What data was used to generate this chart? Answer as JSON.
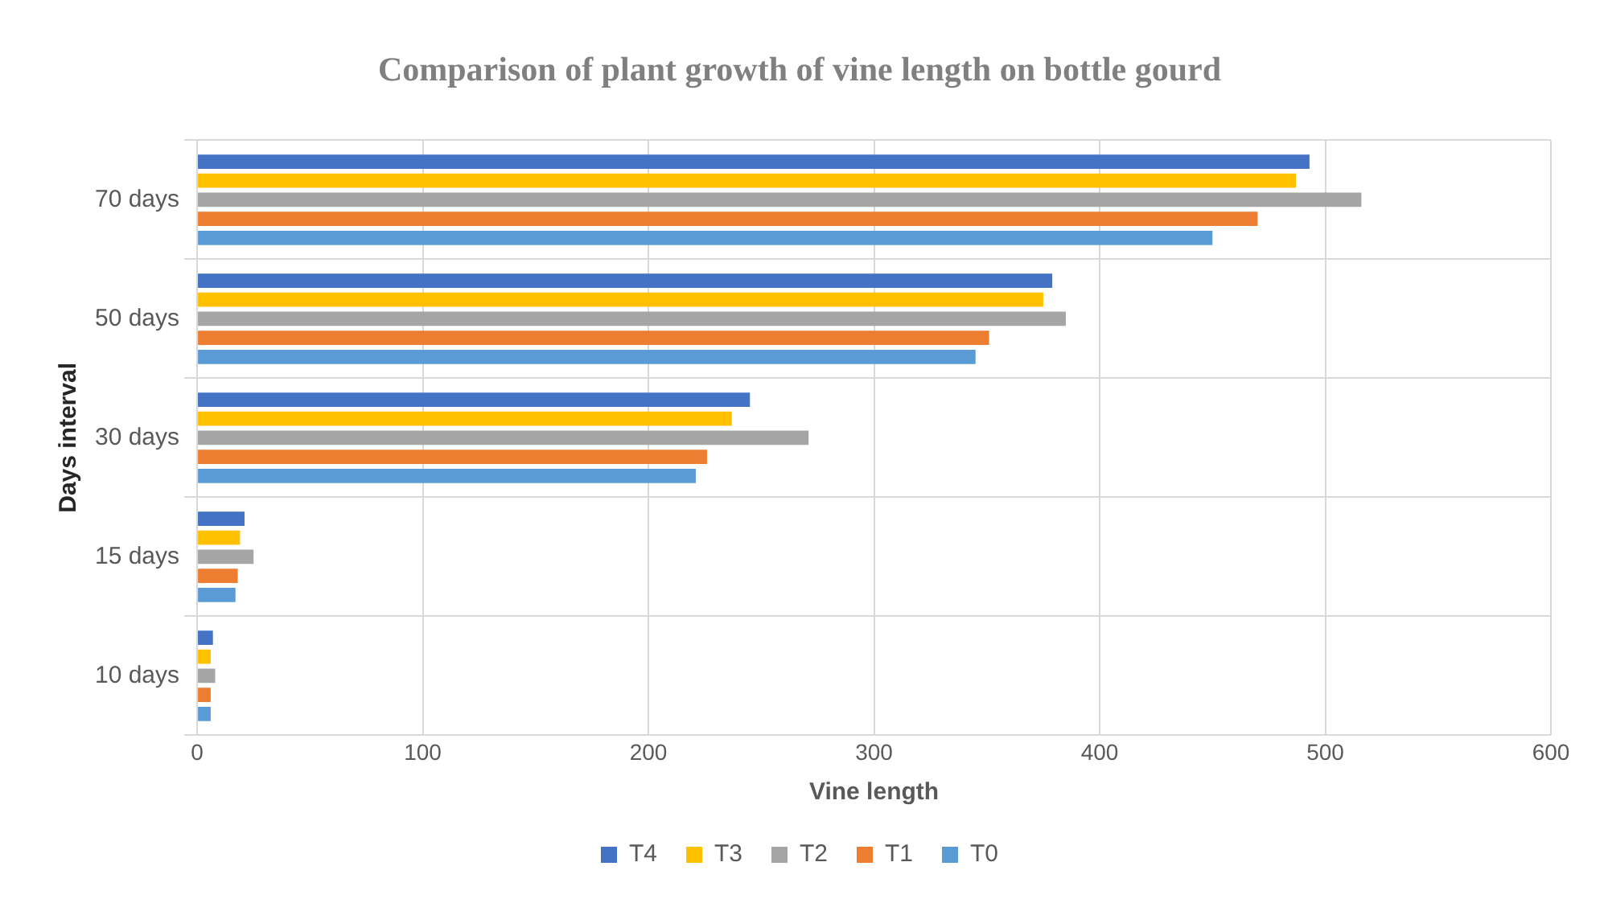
{
  "chart_data": {
    "type": "bar",
    "orientation": "horizontal",
    "title": "Comparison of plant growth of vine length on bottle gourd",
    "xlabel": "Vine length",
    "ylabel": "Days interval",
    "categories": [
      "70 days",
      "50 days",
      "30 days",
      "15 days",
      "10 days"
    ],
    "series": [
      {
        "name": "T4",
        "color": "#4472c4",
        "values": [
          493,
          379,
          245,
          21,
          7
        ]
      },
      {
        "name": "T3",
        "color": "#ffc000",
        "values": [
          487,
          375,
          237,
          19,
          6
        ]
      },
      {
        "name": "T2",
        "color": "#a5a5a5",
        "values": [
          516,
          385,
          271,
          25,
          8
        ]
      },
      {
        "name": "T1",
        "color": "#ed7d31",
        "values": [
          470,
          351,
          226,
          18,
          6
        ]
      },
      {
        "name": "T0",
        "color": "#5b9bd5",
        "values": [
          450,
          345,
          221,
          17,
          6
        ]
      }
    ],
    "xlim": [
      0,
      600
    ],
    "xticks": [
      0,
      100,
      200,
      300,
      400,
      500,
      600
    ],
    "grid": true,
    "legend": "bottom"
  }
}
